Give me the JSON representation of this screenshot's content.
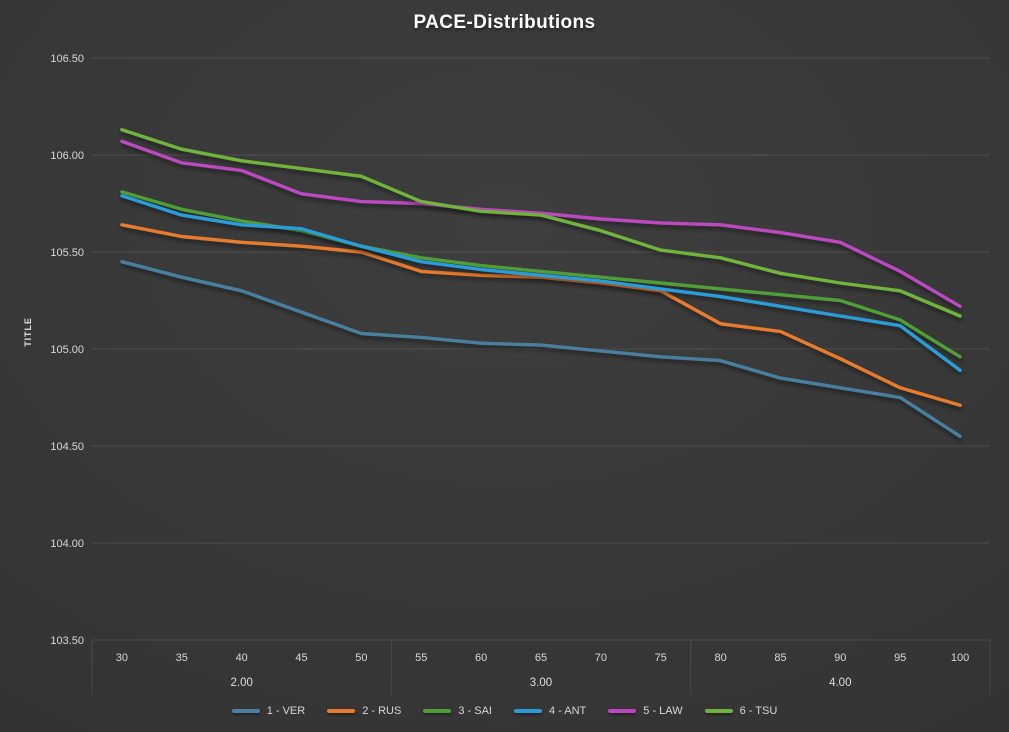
{
  "chart_data": {
    "type": "line",
    "title": "PACE-Distributions",
    "xlabel": "",
    "ylabel": "TITLE",
    "ylim": [
      103.5,
      106.5
    ],
    "yticks": [
      106.5,
      106.0,
      105.5,
      105.0,
      104.5,
      104.0,
      103.5
    ],
    "x": [
      30,
      35,
      40,
      45,
      50,
      55,
      60,
      65,
      70,
      75,
      80,
      85,
      90,
      95,
      100
    ],
    "x_groups": [
      {
        "label": "2.00",
        "ticks": [
          30,
          35,
          40,
          45,
          50
        ]
      },
      {
        "label": "3.00",
        "ticks": [
          55,
          60,
          65,
          70,
          75
        ]
      },
      {
        "label": "4.00",
        "ticks": [
          80,
          85,
          90,
          95,
          100
        ]
      }
    ],
    "grid": "horizontal",
    "legend_position": "bottom",
    "series": [
      {
        "name": "1 - VER",
        "color": "#4a7f9e",
        "values": [
          105.45,
          105.37,
          105.3,
          105.19,
          105.08,
          105.06,
          105.03,
          105.02,
          104.99,
          104.96,
          104.94,
          104.85,
          104.8,
          104.75,
          104.55
        ]
      },
      {
        "name": "2 - RUS",
        "color": "#e87b2e",
        "values": [
          105.64,
          105.58,
          105.55,
          105.53,
          105.5,
          105.4,
          105.38,
          105.37,
          105.34,
          105.3,
          105.13,
          105.09,
          104.95,
          104.8,
          104.71
        ]
      },
      {
        "name": "3 - SAI",
        "color": "#4f9e38",
        "values": [
          105.81,
          105.72,
          105.66,
          105.61,
          105.53,
          105.47,
          105.43,
          105.4,
          105.37,
          105.34,
          105.31,
          105.28,
          105.25,
          105.15,
          104.96
        ]
      },
      {
        "name": "4 - ANT",
        "color": "#2b9cd8",
        "values": [
          105.79,
          105.69,
          105.64,
          105.62,
          105.53,
          105.45,
          105.41,
          105.38,
          105.35,
          105.31,
          105.27,
          105.22,
          105.17,
          105.12,
          104.89
        ]
      },
      {
        "name": "5 - LAW",
        "color": "#bb48c0",
        "values": [
          106.07,
          105.96,
          105.92,
          105.8,
          105.76,
          105.75,
          105.72,
          105.7,
          105.67,
          105.65,
          105.64,
          105.6,
          105.55,
          105.4,
          105.22
        ]
      },
      {
        "name": "6 - TSU",
        "color": "#6fb33c",
        "values": [
          106.13,
          106.03,
          105.97,
          105.93,
          105.89,
          105.76,
          105.71,
          105.69,
          105.61,
          105.51,
          105.47,
          105.39,
          105.34,
          105.3,
          105.17
        ]
      }
    ]
  }
}
